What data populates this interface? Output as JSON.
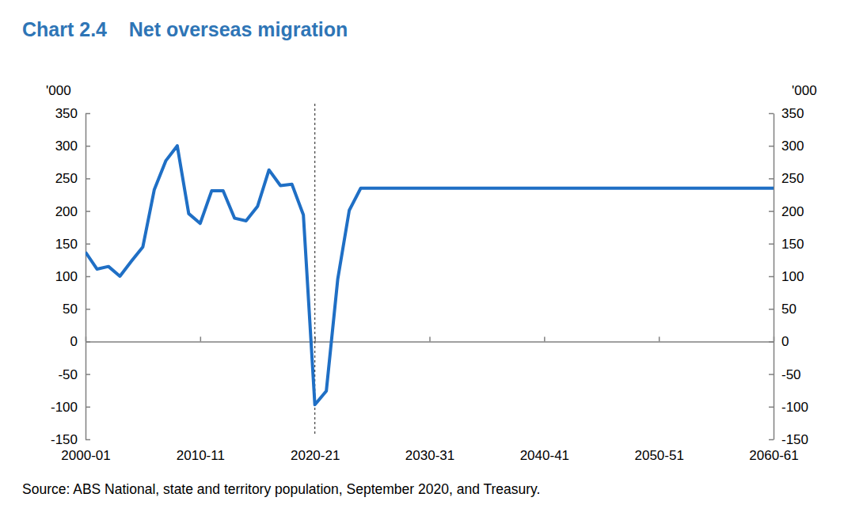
{
  "chart_data": {
    "type": "line",
    "title": "Chart 2.4    Net overseas migration",
    "ylabel": "'000",
    "source": "Source: ABS National, state and territory population, September 2020, and Treasury.",
    "color": "#1f6fc5",
    "vline": "2020-21",
    "grid": false,
    "categories": [
      "2000-01",
      null,
      null,
      null,
      null,
      null,
      null,
      null,
      null,
      null,
      "2010-11",
      null,
      null,
      null,
      null,
      null,
      null,
      null,
      null,
      null,
      "2020-21",
      null,
      null,
      null,
      null,
      null,
      null,
      null,
      null,
      null,
      "2030-31",
      null,
      null,
      null,
      null,
      null,
      null,
      null,
      null,
      null,
      "2040-41",
      null,
      null,
      null,
      null,
      null,
      null,
      null,
      null,
      null,
      "2050-51",
      null,
      null,
      null,
      null,
      null,
      null,
      null,
      null,
      null,
      "2060-61"
    ],
    "values": [
      137,
      111,
      115,
      100,
      123,
      145,
      233,
      277,
      300,
      196,
      181,
      231,
      231,
      189,
      185,
      207,
      263,
      239,
      241,
      194,
      -97,
      -76,
      96,
      201,
      235,
      235,
      235,
      235,
      235,
      235,
      235,
      235,
      235,
      235,
      235,
      235,
      235,
      235,
      235,
      235,
      235,
      235,
      235,
      235,
      235,
      235,
      235,
      235,
      235,
      235,
      235,
      235,
      235,
      235,
      235,
      235,
      235,
      235,
      235,
      235,
      235
    ],
    "ylim": [
      -150,
      350
    ],
    "yticks": [
      -150,
      -100,
      -50,
      0,
      50,
      100,
      150,
      200,
      250,
      300,
      350
    ]
  }
}
